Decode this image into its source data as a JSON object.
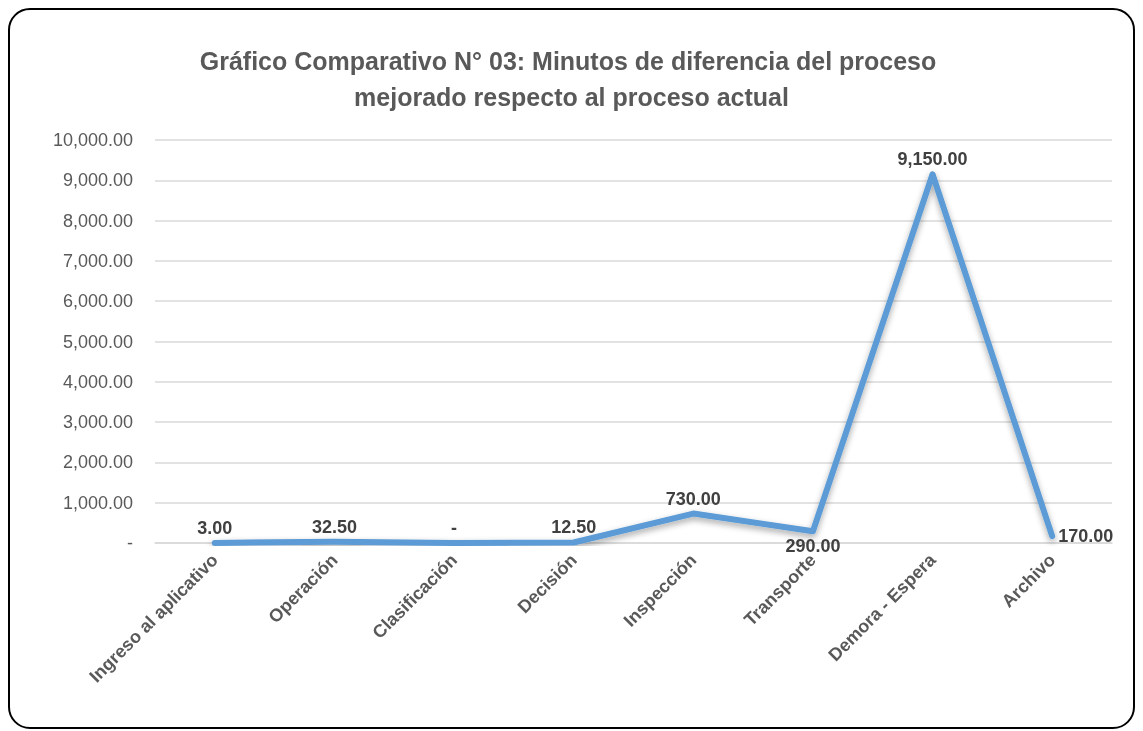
{
  "chart_data": {
    "type": "line",
    "title": "Gráfico Comparativo N° 03: Minutos de diferencia del proceso mejorado respecto al proceso actual",
    "categories": [
      "Ingreso al aplicativo",
      "Operación",
      "Clasificación",
      "Decisión",
      "Inspección",
      "Transporte",
      "Demora - Espera",
      "Archivo"
    ],
    "series": [
      {
        "color": "#5b9bd5",
        "values": [
          3,
          32.5,
          0,
          12.5,
          730,
          290,
          9150,
          170
        ],
        "value_labels": [
          "3.00",
          "32.50",
          "-",
          "12.50",
          "730.00",
          "290.00",
          "9,150.00",
          "170.00"
        ]
      }
    ],
    "ylim": [
      0,
      10000
    ],
    "yticks": [
      {
        "value": 0,
        "label": "-"
      },
      {
        "value": 1000,
        "label": "1,000.00"
      },
      {
        "value": 2000,
        "label": "2,000.00"
      },
      {
        "value": 3000,
        "label": "3,000.00"
      },
      {
        "value": 4000,
        "label": "4,000.00"
      },
      {
        "value": 5000,
        "label": "5,000.00"
      },
      {
        "value": 6000,
        "label": "6,000.00"
      },
      {
        "value": 7000,
        "label": "7,000.00"
      },
      {
        "value": 8000,
        "label": "8,000.00"
      },
      {
        "value": 9000,
        "label": "9,000.00"
      },
      {
        "value": 10000,
        "label": "10,000.00"
      }
    ],
    "grid": "y",
    "legend": false,
    "marker": "none",
    "line_style": "solid"
  }
}
